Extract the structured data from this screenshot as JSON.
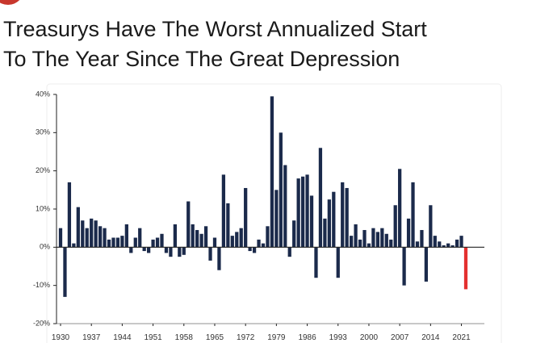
{
  "chart_data": {
    "type": "bar",
    "title": [
      "Treasurys Have The Worst Annualized Start",
      "To The Year Since The Great Depression"
    ],
    "categories": [
      "1930",
      null,
      null,
      null,
      null,
      null,
      null,
      "1937",
      null,
      null,
      null,
      null,
      null,
      null,
      "1944",
      null,
      null,
      null,
      null,
      null,
      null,
      "1951",
      null,
      null,
      null,
      null,
      null,
      null,
      "1958",
      null,
      null,
      null,
      null,
      null,
      null,
      "1965",
      null,
      null,
      null,
      null,
      null,
      null,
      "1972",
      null,
      null,
      null,
      null,
      null,
      null,
      "1979",
      null,
      null,
      null,
      null,
      null,
      null,
      "1986",
      null,
      null,
      null,
      null,
      null,
      null,
      "1993",
      null,
      null,
      null,
      null,
      null,
      null,
      "2000",
      null,
      null,
      null,
      null,
      null,
      null,
      "2007",
      null,
      null,
      null,
      null,
      null,
      null,
      "2014",
      null,
      null,
      null,
      null,
      null,
      null,
      "2021",
      null
    ],
    "values": [
      5,
      -13,
      17,
      1,
      10.5,
      7,
      5,
      7.5,
      7,
      5.5,
      5,
      2,
      2.5,
      2.5,
      3,
      6,
      -1.5,
      2.5,
      5,
      -1,
      -1.5,
      2,
      2.5,
      3.5,
      -1.5,
      -2.5,
      6,
      -2.5,
      -2,
      12,
      6,
      4.5,
      3.5,
      5.5,
      -3.5,
      2.5,
      -6,
      19,
      11.5,
      3,
      4,
      5,
      15.5,
      -1,
      -1.5,
      2,
      1,
      5.5,
      39.5,
      15,
      30,
      21.5,
      -2.5,
      7,
      18,
      18.5,
      19,
      13.5,
      -8,
      26,
      7.5,
      12.5,
      14.5,
      -8,
      17,
      15.5,
      3,
      6,
      2,
      4.5,
      1,
      5,
      4,
      5,
      3.5,
      2,
      11,
      20.5,
      -10,
      7.5,
      17,
      1.5,
      4.5,
      -9,
      11,
      3,
      1.5,
      0.5,
      1,
      0.5,
      2,
      3,
      -11
    ],
    "color": "#1b2a4b",
    "last_color": "#e4302f",
    "ylim": [
      -20,
      40
    ],
    "yticks": [
      {
        "value": -20,
        "label": "-20%"
      },
      {
        "value": -10,
        "label": "-10%"
      },
      {
        "value": 0,
        "label": "0%"
      },
      {
        "value": 10,
        "label": "10%"
      },
      {
        "value": 20,
        "label": "20%"
      },
      {
        "value": 30,
        "label": "30%"
      },
      {
        "value": 40,
        "label": "40%"
      }
    ],
    "grid": false
  }
}
